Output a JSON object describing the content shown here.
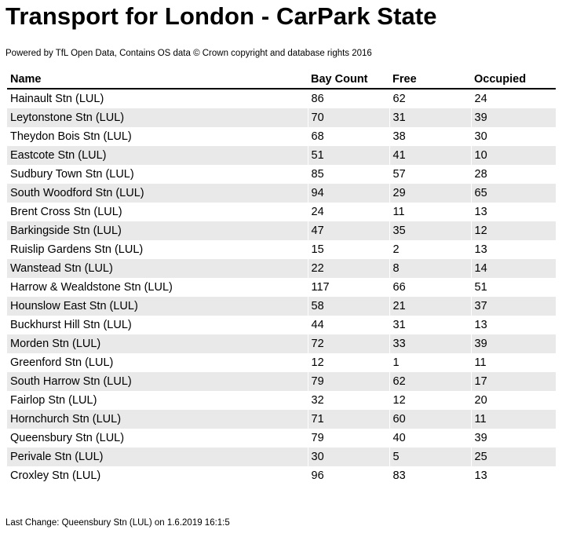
{
  "title": "Transport for London - CarPark State",
  "attribution": "Powered by TfL Open Data, Contains OS data © Crown copyright and database rights 2016",
  "table": {
    "headers": {
      "name": "Name",
      "bay_count": "Bay Count",
      "free": "Free",
      "occupied": "Occupied"
    },
    "rows": [
      {
        "name": "Hainault Stn (LUL)",
        "bay_count": "86",
        "free": "62",
        "occupied": "24"
      },
      {
        "name": "Leytonstone Stn (LUL)",
        "bay_count": "70",
        "free": "31",
        "occupied": "39"
      },
      {
        "name": "Theydon Bois Stn (LUL)",
        "bay_count": "68",
        "free": "38",
        "occupied": "30"
      },
      {
        "name": "Eastcote Stn (LUL)",
        "bay_count": "51",
        "free": "41",
        "occupied": "10"
      },
      {
        "name": "Sudbury Town Stn (LUL)",
        "bay_count": "85",
        "free": "57",
        "occupied": "28"
      },
      {
        "name": "South Woodford Stn (LUL)",
        "bay_count": "94",
        "free": "29",
        "occupied": "65"
      },
      {
        "name": "Brent Cross Stn (LUL)",
        "bay_count": "24",
        "free": "11",
        "occupied": "13"
      },
      {
        "name": "Barkingside Stn (LUL)",
        "bay_count": "47",
        "free": "35",
        "occupied": "12"
      },
      {
        "name": "Ruislip Gardens Stn (LUL)",
        "bay_count": "15",
        "free": "2",
        "occupied": "13"
      },
      {
        "name": "Wanstead Stn (LUL)",
        "bay_count": "22",
        "free": "8",
        "occupied": "14"
      },
      {
        "name": "Harrow & Wealdstone Stn (LUL)",
        "bay_count": "117",
        "free": "66",
        "occupied": "51"
      },
      {
        "name": "Hounslow East Stn (LUL)",
        "bay_count": "58",
        "free": "21",
        "occupied": "37"
      },
      {
        "name": "Buckhurst Hill Stn (LUL)",
        "bay_count": "44",
        "free": "31",
        "occupied": "13"
      },
      {
        "name": "Morden Stn (LUL)",
        "bay_count": "72",
        "free": "33",
        "occupied": "39"
      },
      {
        "name": "Greenford Stn (LUL)",
        "bay_count": "12",
        "free": "1",
        "occupied": "11"
      },
      {
        "name": "South Harrow Stn (LUL)",
        "bay_count": "79",
        "free": "62",
        "occupied": "17"
      },
      {
        "name": "Fairlop Stn (LUL)",
        "bay_count": "32",
        "free": "12",
        "occupied": "20"
      },
      {
        "name": "Hornchurch Stn (LUL)",
        "bay_count": "71",
        "free": "60",
        "occupied": "11"
      },
      {
        "name": "Queensbury Stn (LUL)",
        "bay_count": "79",
        "free": "40",
        "occupied": "39"
      },
      {
        "name": "Perivale Stn (LUL)",
        "bay_count": "30",
        "free": "5",
        "occupied": "25"
      },
      {
        "name": "Croxley Stn (LUL)",
        "bay_count": "96",
        "free": "83",
        "occupied": "13"
      }
    ]
  },
  "last_change": "Last Change: Queensbury Stn (LUL) on 1.6.2019 16:1:5",
  "colors": {
    "row_stripe": "#e9e9e9",
    "header_rule": "#000000",
    "text": "#000000",
    "background": "#ffffff"
  }
}
